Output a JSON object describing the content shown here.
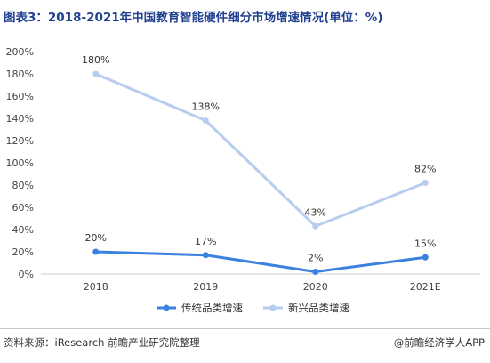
{
  "title": "图表3：2018-2021年中国教育智能硬件细分市场增速情况(单位：%)",
  "source": "资料来源：iResearch 前瞻产业研究院整理",
  "credit": "@前瞻经济学人APP",
  "colors": {
    "title": "#1f3f8f",
    "series_traditional": "#3b82e0",
    "series_new": "#b6cdf0",
    "axis": "#cccccc"
  },
  "chart_data": {
    "type": "line",
    "x": [
      "2018",
      "2019",
      "2020",
      "2021E"
    ],
    "y_ticks": [
      "0%",
      "20%",
      "40%",
      "60%",
      "80%",
      "100%",
      "120%",
      "140%",
      "160%",
      "180%",
      "200%"
    ],
    "ylim": [
      0,
      200
    ],
    "grid": false,
    "legend_position": "bottom",
    "series": [
      {
        "name": "传统品类增速",
        "values": [
          20,
          17,
          2,
          15
        ],
        "labels": [
          "20%",
          "17%",
          "2%",
          "15%"
        ],
        "color": "#3b82e0"
      },
      {
        "name": "新兴品类增速",
        "values": [
          180,
          138,
          43,
          82
        ],
        "labels": [
          "180%",
          "138%",
          "43%",
          "82%"
        ],
        "color": "#b6cdf0"
      }
    ]
  }
}
